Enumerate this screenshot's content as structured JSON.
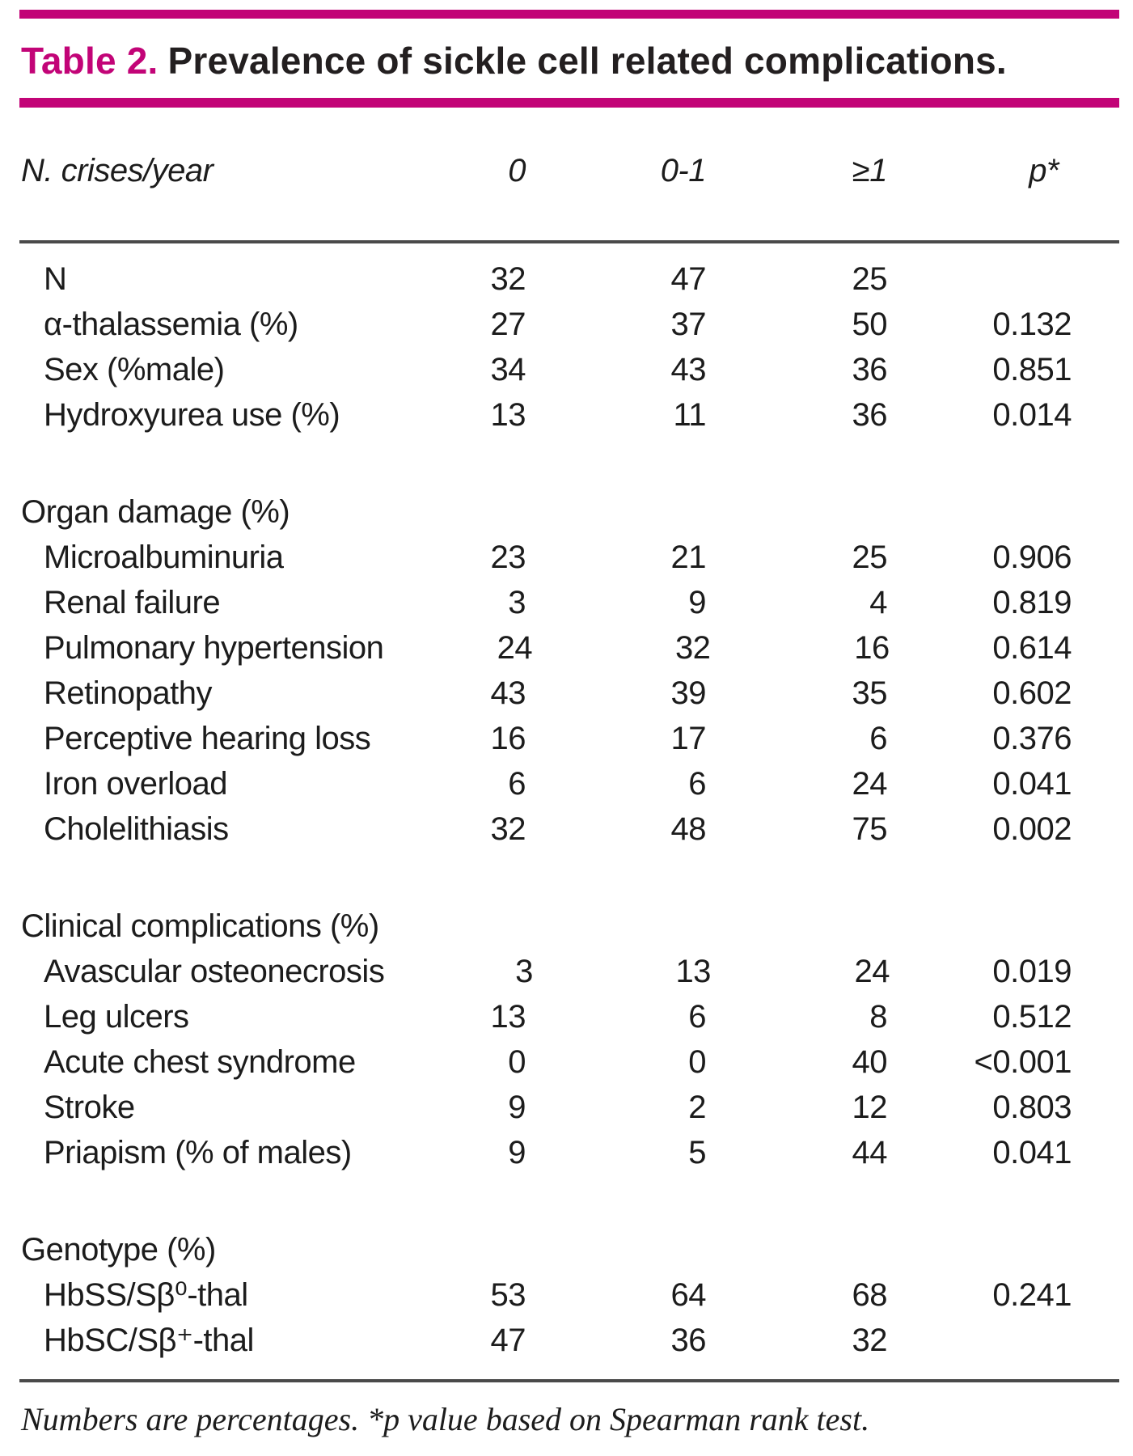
{
  "table": {
    "label": "Table 2.",
    "title": "Prevalence of sickle cell related complications.",
    "columns": [
      "N. crises/year",
      "0",
      "0-1",
      "≥1",
      "p*"
    ],
    "sections": [
      {
        "header": "",
        "rows": [
          {
            "label": "N",
            "values": [
              "32",
              "47",
              "25",
              ""
            ]
          },
          {
            "label": "α-thalassemia (%)",
            "values": [
              "27",
              "37",
              "50",
              "0.132"
            ]
          },
          {
            "label": "Sex (%male)",
            "values": [
              "34",
              "43",
              "36",
              "0.851"
            ]
          },
          {
            "label": "Hydroxyurea use (%)",
            "values": [
              "13",
              "11",
              "36",
              "0.014"
            ]
          }
        ]
      },
      {
        "header": "Organ damage (%)",
        "rows": [
          {
            "label": "Microalbuminuria",
            "values": [
              "23",
              "21",
              "25",
              "0.906"
            ]
          },
          {
            "label": "Renal failure",
            "values": [
              "3",
              "9",
              "4",
              "0.819"
            ]
          },
          {
            "label": "Pulmonary hypertension",
            "values": [
              "24",
              "32",
              "16",
              "0.614"
            ]
          },
          {
            "label": "Retinopathy",
            "values": [
              "43",
              "39",
              "35",
              "0.602"
            ]
          },
          {
            "label": "Perceptive hearing loss",
            "values": [
              "16",
              "17",
              "6",
              "0.376"
            ]
          },
          {
            "label": "Iron overload",
            "values": [
              "6",
              "6",
              "24",
              "0.041"
            ]
          },
          {
            "label": "Cholelithiasis",
            "values": [
              "32",
              "48",
              "75",
              "0.002"
            ]
          }
        ]
      },
      {
        "header": "Clinical complications (%)",
        "rows": [
          {
            "label": "Avascular osteonecrosis",
            "values": [
              "3",
              "13",
              "24",
              "0.019"
            ]
          },
          {
            "label": "Leg ulcers",
            "values": [
              "13",
              "6",
              "8",
              "0.512"
            ]
          },
          {
            "label": "Acute chest syndrome",
            "values": [
              "0",
              "0",
              "40",
              "<0.001"
            ]
          },
          {
            "label": "Stroke",
            "values": [
              "9",
              "2",
              "12",
              "0.803"
            ]
          },
          {
            "label": "Priapism (% of males)",
            "values": [
              "9",
              "5",
              "44",
              "0.041"
            ]
          }
        ]
      },
      {
        "header": "Genotype (%)",
        "rows": [
          {
            "label": "HbSS/Sβ⁰-thal",
            "values": [
              "53",
              "64",
              "68",
              "0.241"
            ]
          },
          {
            "label": "HbSC/Sβ⁺-thal",
            "values": [
              "47",
              "36",
              "32",
              ""
            ]
          }
        ]
      }
    ],
    "footnote": "Numbers are percentages. *p value based on Spearman rank test.",
    "colors": {
      "accent": "#C20477",
      "text": "#1C1C1C",
      "rule": "#4A4A4A",
      "background": "#FFFFFF"
    }
  }
}
